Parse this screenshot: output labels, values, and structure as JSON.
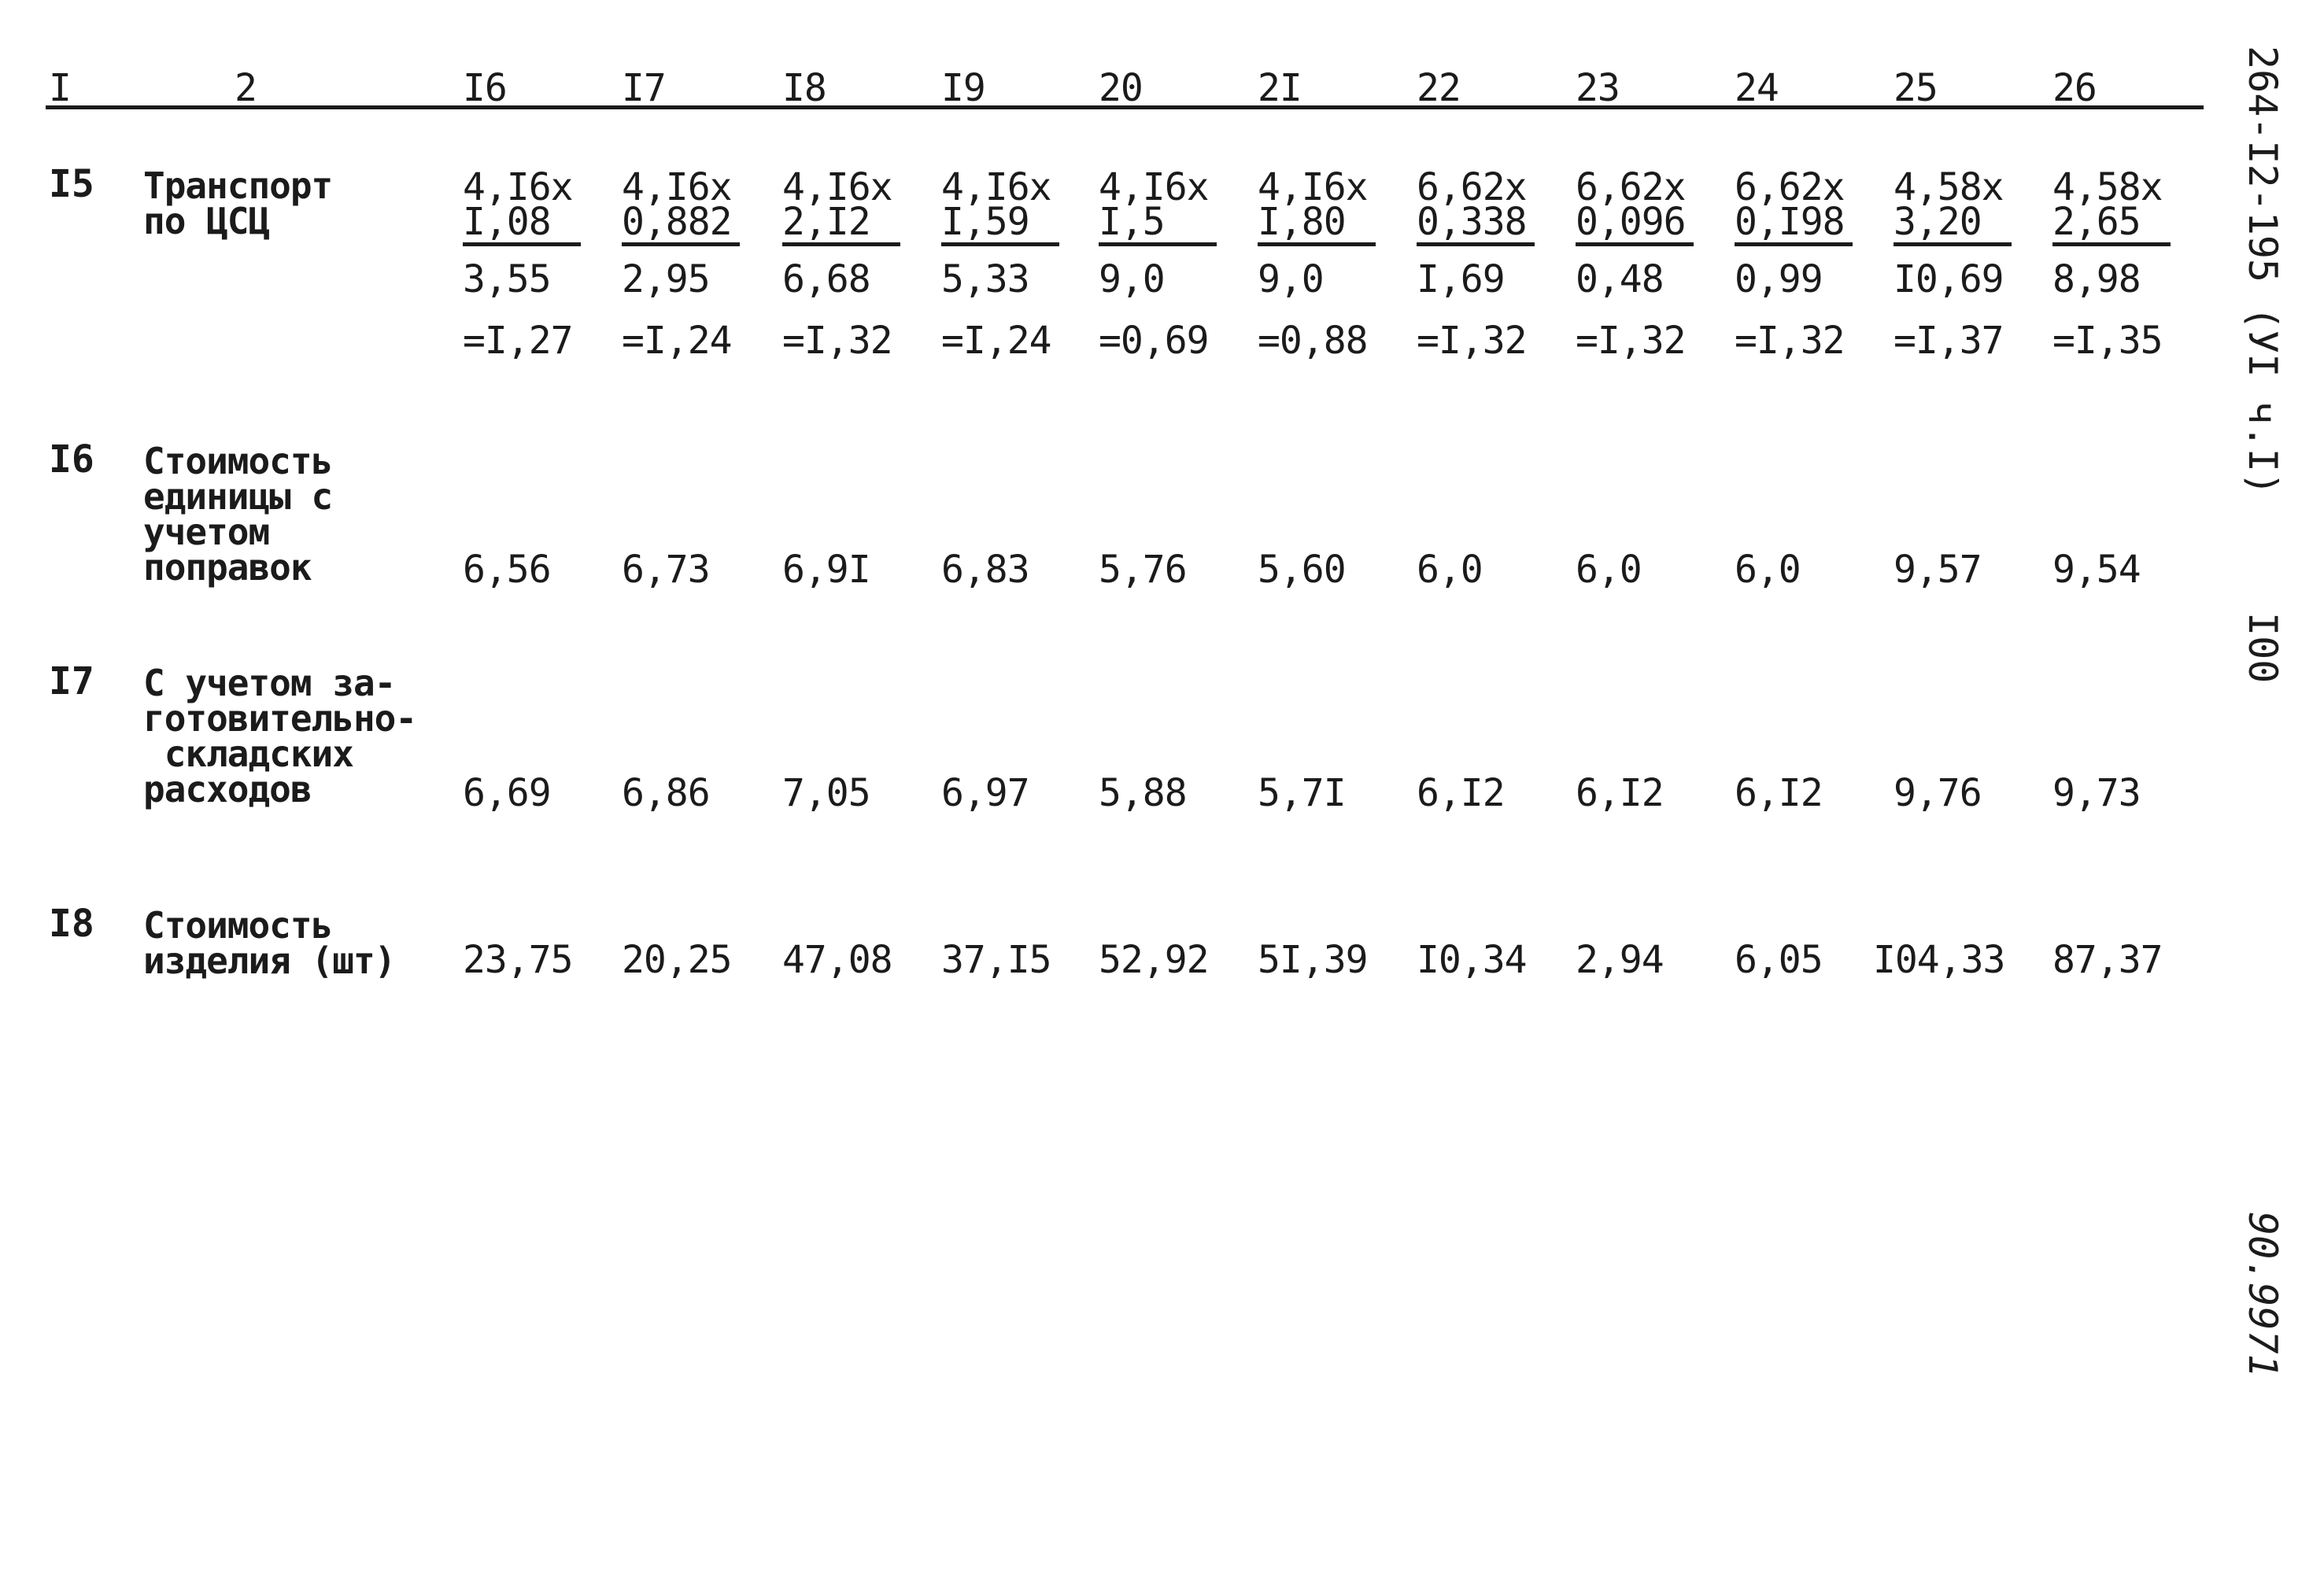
{
  "side": {
    "doc_code": "264-I2-195 (УI ч.I)",
    "page_number": "I00",
    "stamp": "90.9971"
  },
  "header": {
    "col_num": "I",
    "col_name": "2",
    "cols": [
      "I6",
      "I7",
      "I8",
      "I9",
      "20",
      "2I",
      "22",
      "23",
      "24",
      "25",
      "26"
    ]
  },
  "rows": {
    "transport": {
      "num": "I5",
      "label": "Транспорт\nпо ЦСЦ",
      "cells": [
        {
          "a": "4,I6x",
          "b": "I,08",
          "res": "3,55",
          "eq": "=I,27"
        },
        {
          "a": "4,I6x",
          "b": "0,882",
          "res": "2,95",
          "eq": "=I,24"
        },
        {
          "a": "4,I6x",
          "b": "2,I2",
          "res": "6,68",
          "eq": "=I,32"
        },
        {
          "a": "4,I6x",
          "b": "I,59",
          "res": "5,33",
          "eq": "=I,24"
        },
        {
          "a": "4,I6x",
          "b": "I,5",
          "res": "9,0",
          "eq": "=0,69"
        },
        {
          "a": "4,I6x",
          "b": "I,80",
          "res": "9,0",
          "eq": "=0,88"
        },
        {
          "a": "6,62x",
          "b": "0,338",
          "res": "I,69",
          "eq": "=I,32"
        },
        {
          "a": "6,62x",
          "b": "0,096",
          "res": "0,48",
          "eq": "=I,32"
        },
        {
          "a": "6,62x",
          "b": "0,I98",
          "res": "0,99",
          "eq": "=I,32"
        },
        {
          "a": "4,58x",
          "b": "3,20",
          "res": "I0,69",
          "eq": "=I,37"
        },
        {
          "a": "4,58x",
          "b": "2,65",
          "res": "8,98",
          "eq": "=I,35"
        }
      ]
    },
    "unit_cost": {
      "num": "I6",
      "label": "Стоимость\nединицы с\nучетом\nпоправок",
      "values": [
        "6,56",
        "6,73",
        "6,9I",
        "6,83",
        "5,76",
        "5,60",
        "6,0",
        "6,0",
        "6,0",
        "9,57",
        "9,54"
      ]
    },
    "with_storage": {
      "num": "I7",
      "label": "С учетом за-\nготовительно-\n складских\nрасходов",
      "values": [
        "6,69",
        "6,86",
        "7,05",
        "6,97",
        "5,88",
        "5,7I",
        "6,I2",
        "6,I2",
        "6,I2",
        "9,76",
        "9,73"
      ]
    },
    "item_cost": {
      "num": "I8",
      "label": "Стоимость\nизделия (шт)",
      "values": [
        "23,75",
        "20,25",
        "47,08",
        "37,I5",
        "52,92",
        "5I,39",
        "I0,34",
        "2,94",
        "6,05",
        "I04,33",
        "87,37"
      ]
    }
  }
}
